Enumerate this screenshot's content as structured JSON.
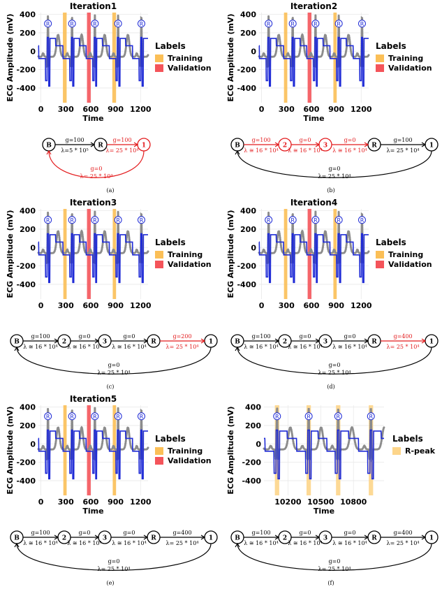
{
  "figure": {
    "labels_heading": "Labels",
    "legend_training": "Training",
    "legend_validation": "Validation",
    "legend_rpeak": "R-peak",
    "peak_marker": "R",
    "colors": {
      "training": "#fbbf57",
      "validation": "#f4545a",
      "rpeak": "#fdd58a",
      "signal": "#8c8c8c",
      "fit": "#1f2bd6",
      "grid": "#e9e9e9",
      "active": "#e31a1c",
      "text": "#000000"
    }
  },
  "chart_data": [
    {
      "type": "line",
      "panel": "a",
      "title": "Iteration1",
      "xlabel": "Time",
      "ylabel": "ECG Amplitude (mV)",
      "xlim": [
        -30,
        1290
      ],
      "ylim": [
        -560,
        420
      ],
      "xticks": [
        0,
        300,
        600,
        900,
        1200
      ],
      "yticks": [
        400,
        200,
        0,
        -200,
        -400
      ],
      "xtick_labels": [
        "0",
        "300",
        "600",
        "900",
        "1200"
      ],
      "ytick_labels": [
        "400",
        "200",
        "0",
        "-200",
        "-400"
      ],
      "legend": [
        "Training",
        "Validation"
      ],
      "regions": [
        {
          "label": "Training",
          "x": [
            265,
            310
          ]
        },
        {
          "label": "Validation",
          "x": [
            555,
            600
          ]
        },
        {
          "label": "Training",
          "x": [
            860,
            905
          ]
        }
      ],
      "r_peaks": [
        85,
        375,
        650,
        930,
        1210
      ],
      "caption": "(a)",
      "state_diagram": {
        "layout": "a",
        "states": [
          "B",
          "R",
          "1"
        ],
        "active_states": [
          "1"
        ],
        "transitions": [
          {
            "from": "B",
            "to": "R",
            "g": "g=100",
            "lambda": "λ=5 * 10⁵",
            "active": false,
            "direction": "up"
          },
          {
            "from": "R",
            "to": "1",
            "g": "g=100",
            "lambda": "λ= 25 * 10⁴",
            "active": true,
            "direction": "down"
          },
          {
            "from": "1",
            "to": "B",
            "g": "g=0",
            "lambda": "λ= 25 * 10⁴",
            "active": true,
            "direction": "up"
          }
        ]
      }
    },
    {
      "type": "line",
      "panel": "b",
      "title": "Iteration2",
      "xlabel": "Time",
      "ylabel": "ECG Amplitude (mV)",
      "xlim": [
        -30,
        1290
      ],
      "ylim": [
        -560,
        420
      ],
      "xticks": [
        0,
        300,
        600,
        900,
        1200
      ],
      "yticks": [
        400,
        200,
        0,
        -200,
        -400
      ],
      "xtick_labels": [
        "0",
        "300",
        "600",
        "900",
        "1200"
      ],
      "ytick_labels": [
        "400",
        "200",
        "0",
        "-200",
        "-400"
      ],
      "legend": [
        "Training",
        "Validation"
      ],
      "regions": [
        {
          "label": "Training",
          "x": [
            270,
            310
          ]
        },
        {
          "label": "Validation",
          "x": [
            555,
            600
          ]
        },
        {
          "label": "Training",
          "x": [
            865,
            905
          ]
        }
      ],
      "r_peaks": [
        85,
        375,
        650,
        930,
        1210
      ],
      "caption": "(b)",
      "state_diagram": {
        "layout": "full",
        "states": [
          "B",
          "2",
          "3",
          "R",
          "1"
        ],
        "active_states": [
          "2",
          "3"
        ],
        "transitions": [
          {
            "from": "B",
            "to": "2",
            "g": "g=100",
            "lambda": "λ ≅ 16 * 10⁴",
            "active": true,
            "direction": "up"
          },
          {
            "from": "2",
            "to": "3",
            "g": "g=0",
            "lambda": "λ ≅ 16 * 10⁴",
            "active": true,
            "direction": "down"
          },
          {
            "from": "3",
            "to": "R",
            "g": "g=0",
            "lambda": "λ ≅ 16 * 10⁴",
            "active": true,
            "direction": "up"
          },
          {
            "from": "R",
            "to": "1",
            "g": "g=100",
            "lambda": "λ= 25 * 10⁴",
            "active": false,
            "direction": "down"
          },
          {
            "from": "1",
            "to": "B",
            "g": "g=0",
            "lambda": "λ= 25 * 10⁴",
            "active": false,
            "direction": "up"
          }
        ]
      }
    },
    {
      "type": "line",
      "panel": "c",
      "title": "Iteration3",
      "xlabel": "",
      "ylabel": "ECG Amplitude (mV)",
      "xlim": [
        -30,
        1290
      ],
      "ylim": [
        -560,
        420
      ],
      "xticks": [
        0,
        300,
        600,
        900,
        1200
      ],
      "yticks": [
        400,
        200,
        0,
        -200,
        -400
      ],
      "xtick_labels": [
        "0",
        "300",
        "600",
        "900",
        "1200"
      ],
      "ytick_labels": [
        "400",
        "200",
        "0",
        "-200",
        "-400"
      ],
      "legend": [
        "Training",
        "Validation"
      ],
      "regions": [
        {
          "label": "Training",
          "x": [
            270,
            310
          ]
        },
        {
          "label": "Validation",
          "x": [
            555,
            600
          ]
        },
        {
          "label": "Training",
          "x": [
            865,
            905
          ]
        }
      ],
      "r_peaks": [
        85,
        375,
        650,
        930,
        1210
      ],
      "caption": "(c)",
      "state_diagram": {
        "layout": "full",
        "states": [
          "B",
          "2",
          "3",
          "R",
          "1"
        ],
        "active_states": [],
        "transitions": [
          {
            "from": "B",
            "to": "2",
            "g": "g=100",
            "lambda": "λ ≅ 16 * 10⁴",
            "active": false,
            "direction": "up"
          },
          {
            "from": "2",
            "to": "3",
            "g": "g=0",
            "lambda": "λ ≅ 16 * 10⁴",
            "active": false,
            "direction": "down"
          },
          {
            "from": "3",
            "to": "R",
            "g": "g=0",
            "lambda": "λ ≅ 16 * 10⁴",
            "active": false,
            "direction": "up"
          },
          {
            "from": "R",
            "to": "1",
            "g": "g=200",
            "lambda": "λ= 25 * 10⁴",
            "active": true,
            "direction": "down"
          },
          {
            "from": "1",
            "to": "B",
            "g": "g=0",
            "lambda": "λ= 25 * 10⁴",
            "active": false,
            "direction": "up"
          }
        ]
      }
    },
    {
      "type": "line",
      "panel": "d",
      "title": "Iteration4",
      "xlabel": "",
      "ylabel": "ECG Amplitude (mV)",
      "xlim": [
        -30,
        1290
      ],
      "ylim": [
        -560,
        420
      ],
      "xticks": [
        0,
        300,
        600,
        900,
        1200
      ],
      "yticks": [
        400,
        200,
        0,
        -200,
        -400
      ],
      "xtick_labels": [
        "0",
        "300",
        "600",
        "900",
        "1200"
      ],
      "ytick_labels": [
        "400",
        "200",
        "0",
        "-200",
        "-400"
      ],
      "legend": [
        "Training",
        "Validation"
      ],
      "regions": [
        {
          "label": "Training",
          "x": [
            270,
            310
          ]
        },
        {
          "label": "Validation",
          "x": [
            555,
            600
          ]
        },
        {
          "label": "Training",
          "x": [
            865,
            905
          ]
        }
      ],
      "r_peaks": [
        85,
        375,
        650,
        930,
        1210
      ],
      "caption": "(d)",
      "state_diagram": {
        "layout": "full",
        "states": [
          "B",
          "2",
          "3",
          "R",
          "1"
        ],
        "active_states": [],
        "transitions": [
          {
            "from": "B",
            "to": "2",
            "g": "g=100",
            "lambda": "λ ≅ 16 * 10⁴",
            "active": false,
            "direction": "up"
          },
          {
            "from": "2",
            "to": "3",
            "g": "g=0",
            "lambda": "λ ≅ 16 * 10⁴",
            "active": false,
            "direction": "down"
          },
          {
            "from": "3",
            "to": "R",
            "g": "g=0",
            "lambda": "λ ≅ 16 * 10⁴",
            "active": false,
            "direction": "up"
          },
          {
            "from": "R",
            "to": "1",
            "g": "g=400",
            "lambda": "λ= 25 * 10⁴",
            "active": true,
            "direction": "down"
          },
          {
            "from": "1",
            "to": "B",
            "g": "g=0",
            "lambda": "λ= 25 * 10⁴",
            "active": false,
            "direction": "up"
          }
        ]
      }
    },
    {
      "type": "line",
      "panel": "e",
      "title": "Iteration5",
      "xlabel": "Time",
      "ylabel": "ECG Amplitude (mV)",
      "xlim": [
        -30,
        1290
      ],
      "ylim": [
        -560,
        420
      ],
      "xticks": [
        0,
        300,
        600,
        900,
        1200
      ],
      "yticks": [
        400,
        200,
        0,
        -200,
        -400
      ],
      "xtick_labels": [
        "0",
        "300",
        "600",
        "900",
        "1200"
      ],
      "ytick_labels": [
        "400",
        "200",
        "0",
        "-200",
        "-400"
      ],
      "legend": [
        "Training",
        "Validation"
      ],
      "regions": [
        {
          "label": "Training",
          "x": [
            270,
            310
          ]
        },
        {
          "label": "Validation",
          "x": [
            555,
            600
          ]
        },
        {
          "label": "Training",
          "x": [
            865,
            905
          ]
        }
      ],
      "r_peaks": [
        85,
        375,
        650,
        930,
        1210
      ],
      "caption": "(e)",
      "state_diagram": {
        "layout": "full",
        "states": [
          "B",
          "2",
          "3",
          "R",
          "1"
        ],
        "active_states": [],
        "transitions": [
          {
            "from": "B",
            "to": "2",
            "g": "g=100",
            "lambda": "λ ≅ 16 * 10⁴",
            "active": false,
            "direction": "up"
          },
          {
            "from": "2",
            "to": "3",
            "g": "g=0",
            "lambda": "λ ≅ 16 * 10⁴",
            "active": false,
            "direction": "down"
          },
          {
            "from": "3",
            "to": "R",
            "g": "g=0",
            "lambda": "λ ≅ 16 * 10⁴",
            "active": false,
            "direction": "up"
          },
          {
            "from": "R",
            "to": "1",
            "g": "g=400",
            "lambda": "λ= 25 * 10⁴",
            "active": false,
            "direction": "down"
          },
          {
            "from": "1",
            "to": "B",
            "g": "g=0",
            "lambda": "λ= 25 * 10⁴",
            "active": false,
            "direction": "up"
          }
        ]
      }
    },
    {
      "type": "line",
      "panel": "f",
      "title": "",
      "xlabel": "Time",
      "ylabel": "ECG Amplitude (mV)",
      "xlim": [
        9980,
        11080
      ],
      "ylim": [
        -560,
        420
      ],
      "xticks": [
        10200,
        10500,
        10800
      ],
      "yticks": [
        400,
        200,
        0,
        -200,
        -400
      ],
      "xtick_labels": [
        "10200",
        "10500",
        "10800"
      ],
      "ytick_labels": [
        "400",
        "200",
        "0",
        "-200",
        "-400"
      ],
      "legend": [
        "R-peak"
      ],
      "regions": [
        {
          "label": "R-peak",
          "x": [
            10080,
            10120
          ]
        },
        {
          "label": "R-peak",
          "x": [
            10370,
            10410
          ]
        },
        {
          "label": "R-peak",
          "x": [
            10640,
            10680
          ]
        },
        {
          "label": "R-peak",
          "x": [
            10940,
            10980
          ]
        }
      ],
      "r_peaks": [
        10100,
        10390,
        10660,
        10960
      ],
      "caption": "(f)",
      "state_diagram": {
        "layout": "full",
        "states": [
          "B",
          "2",
          "3",
          "R",
          "1"
        ],
        "active_states": [],
        "transitions": [
          {
            "from": "B",
            "to": "2",
            "g": "g=100",
            "lambda": "λ ≅ 16 * 10⁴",
            "active": false,
            "direction": "up"
          },
          {
            "from": "2",
            "to": "3",
            "g": "g=0",
            "lambda": "λ ≅ 16 * 10⁴",
            "active": false,
            "direction": "down"
          },
          {
            "from": "3",
            "to": "R",
            "g": "g=0",
            "lambda": "λ ≅ 16 * 10⁴",
            "active": false,
            "direction": "up"
          },
          {
            "from": "R",
            "to": "1",
            "g": "g=400",
            "lambda": "λ= 25 * 10⁴",
            "active": false,
            "direction": "down"
          },
          {
            "from": "1",
            "to": "B",
            "g": "g=0",
            "lambda": "λ= 25 * 10⁴",
            "active": false,
            "direction": "up"
          }
        ]
      }
    }
  ]
}
